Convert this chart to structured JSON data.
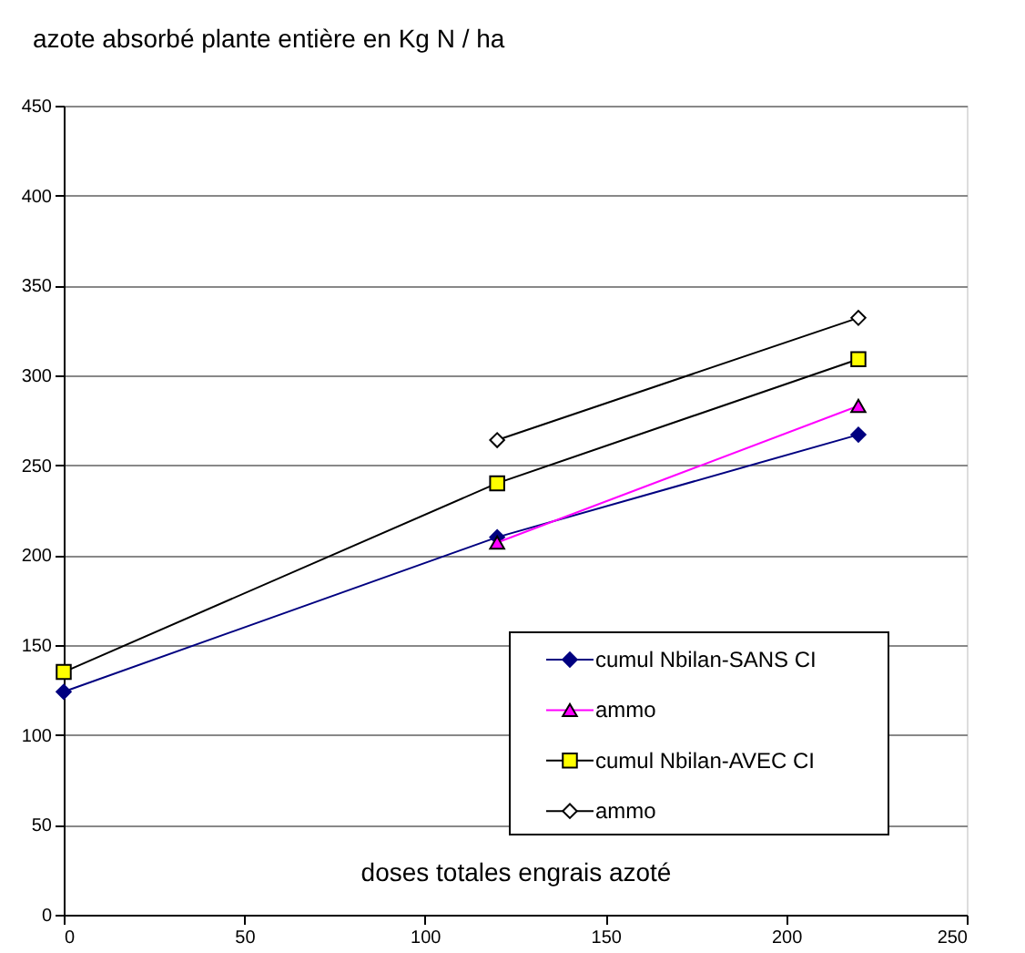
{
  "chart_data": {
    "type": "line",
    "title": "azote absorbé plante entière en Kg N / ha",
    "xlabel": "doses totales engrais azoté",
    "x": [
      0,
      120,
      220
    ],
    "series": [
      {
        "name": "cumul Nbilan-SANS CI",
        "color": "#000080",
        "marker": "diamond",
        "values": [
          124,
          210,
          267
        ]
      },
      {
        "name": "ammo",
        "color": "#ff00ff",
        "marker": "triangle",
        "values": [
          null,
          207,
          283
        ]
      },
      {
        "name": "cumul Nbilan-AVEC CI",
        "color": "#ffff00",
        "marker": "square",
        "values": [
          135,
          240,
          309
        ]
      },
      {
        "name": "ammo",
        "color": "#ffffff",
        "marker": "diamond",
        "values": [
          null,
          264,
          332
        ]
      }
    ],
    "xlim": [
      0,
      250
    ],
    "xticks": [
      0,
      50,
      100,
      150,
      200,
      250
    ],
    "ylim": [
      0,
      450
    ],
    "yticks": [
      0,
      50,
      100,
      150,
      200,
      250,
      300,
      350,
      400,
      450
    ],
    "grid": "y",
    "legend": "bottom right",
    "line_style": "solid"
  }
}
